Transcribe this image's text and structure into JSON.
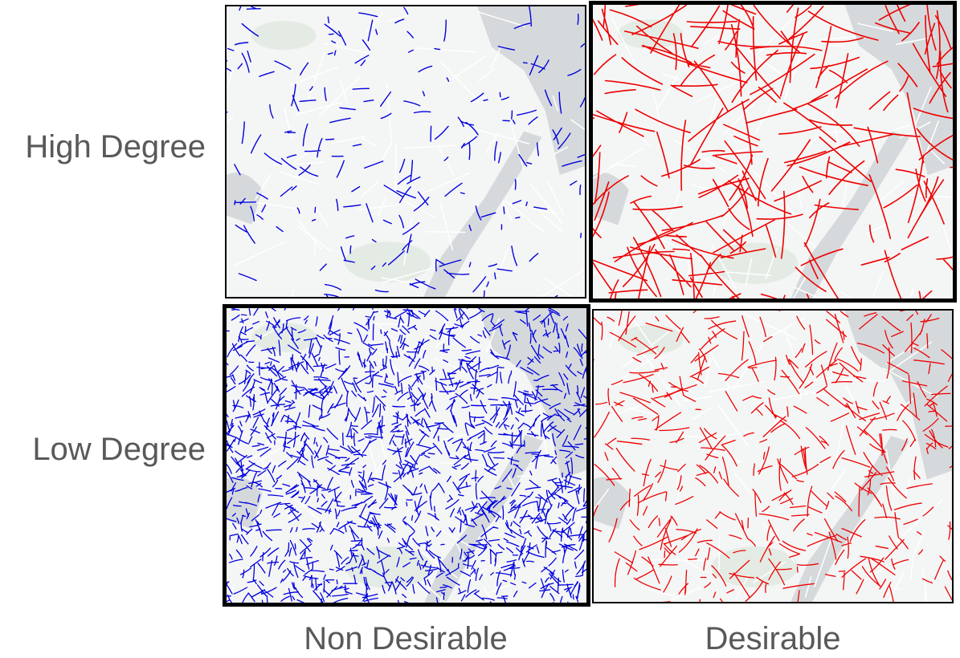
{
  "rows": [
    {
      "label": "High Degree"
    },
    {
      "label": "Low Degree"
    }
  ],
  "columns": [
    {
      "label": "Non Desirable",
      "color": "#0000dd"
    },
    {
      "label": "Desirable",
      "color": "#ee0000"
    }
  ],
  "highlighted_panels": [
    "high-degree-desirable",
    "low-degree-non-desirable"
  ],
  "map_colors": {
    "land": "#f4f5f5",
    "water": "#d5d9dc",
    "park": "#e4ebe4",
    "minor_road": "#ffffff"
  }
}
